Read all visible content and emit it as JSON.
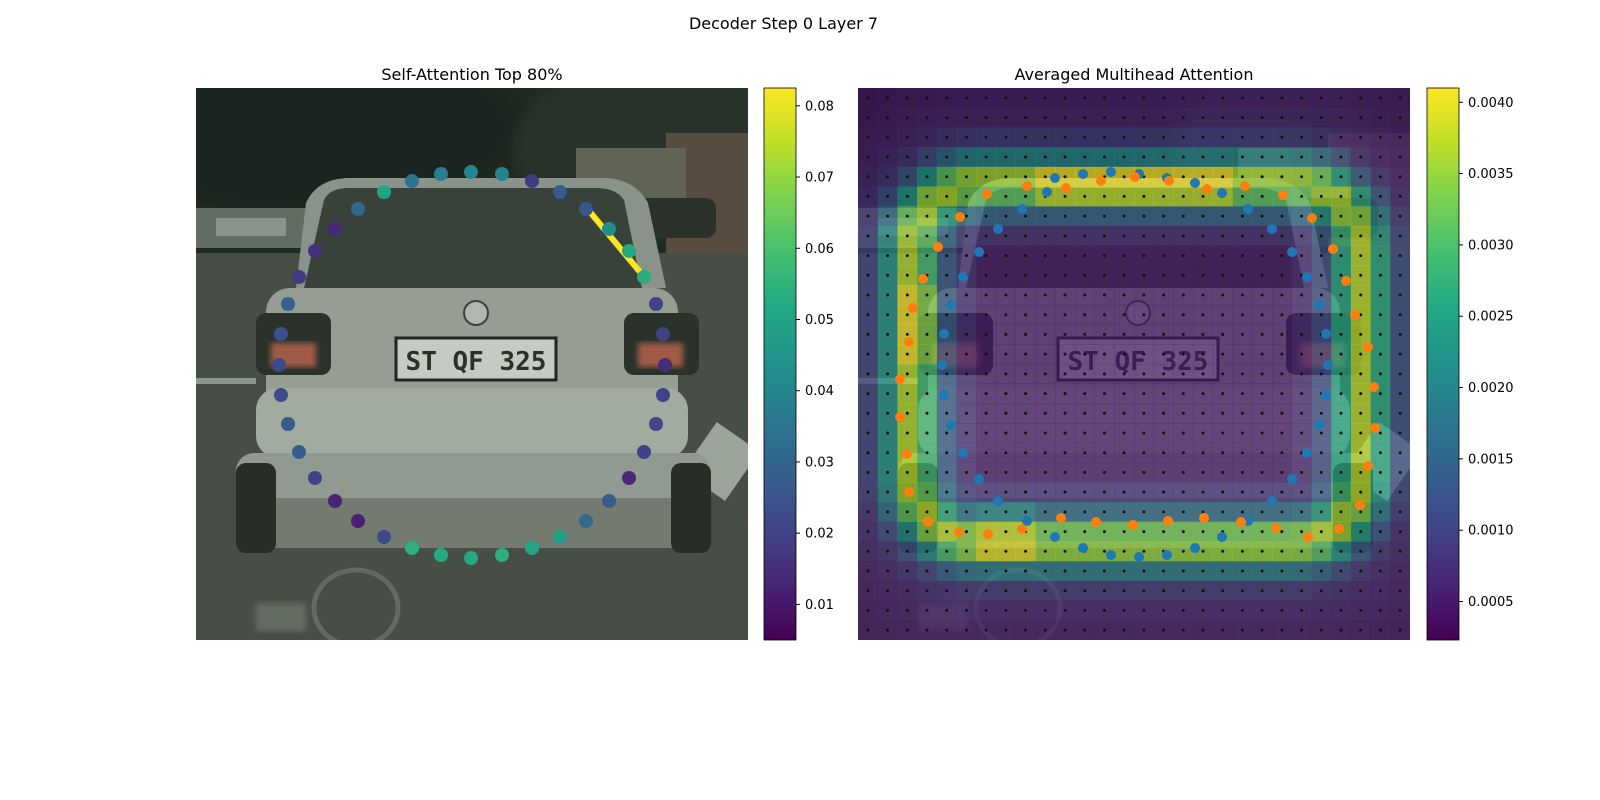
{
  "figure": {
    "suptitle": "Decoder Step 0 Layer 7"
  },
  "chart_data": [
    {
      "type": "scatter",
      "title": "Self-Attention Top 80%",
      "background": "blurred photograph of the rear of a silver car",
      "colormap": "viridis",
      "colorbar": {
        "min": 0.005,
        "max": 0.0825,
        "ticks": [
          0.01,
          0.02,
          0.03,
          0.04,
          0.05,
          0.06,
          0.07,
          0.08
        ],
        "tick_labels": [
          "0.01",
          "0.02",
          "0.03",
          "0.04",
          "0.05",
          "0.06",
          "0.07",
          "0.08"
        ]
      },
      "points": [
        {
          "v": 0.05,
          "x": 384,
          "y": 192
        },
        {
          "v": 0.034,
          "x": 412,
          "y": 181
        },
        {
          "v": 0.038,
          "x": 441,
          "y": 174
        },
        {
          "v": 0.04,
          "x": 471,
          "y": 172
        },
        {
          "v": 0.04,
          "x": 502,
          "y": 174
        },
        {
          "v": 0.018,
          "x": 532,
          "y": 181
        },
        {
          "v": 0.027,
          "x": 560,
          "y": 192
        },
        {
          "v": 0.026,
          "x": 586,
          "y": 209
        },
        {
          "v": 0.043,
          "x": 609,
          "y": 229
        },
        {
          "v": 0.052,
          "x": 629,
          "y": 251
        },
        {
          "v": 0.053,
          "x": 644,
          "y": 277
        },
        {
          "v": 0.02,
          "x": 656,
          "y": 304
        },
        {
          "v": 0.02,
          "x": 663,
          "y": 334
        },
        {
          "v": 0.015,
          "x": 665,
          "y": 365
        },
        {
          "v": 0.02,
          "x": 663,
          "y": 395
        },
        {
          "v": 0.021,
          "x": 656,
          "y": 424
        },
        {
          "v": 0.02,
          "x": 644,
          "y": 452
        },
        {
          "v": 0.014,
          "x": 629,
          "y": 478
        },
        {
          "v": 0.027,
          "x": 609,
          "y": 501
        },
        {
          "v": 0.032,
          "x": 586,
          "y": 521
        },
        {
          "v": 0.049,
          "x": 560,
          "y": 537
        },
        {
          "v": 0.051,
          "x": 532,
          "y": 548
        },
        {
          "v": 0.054,
          "x": 502,
          "y": 555
        },
        {
          "v": 0.052,
          "x": 471,
          "y": 558
        },
        {
          "v": 0.052,
          "x": 441,
          "y": 555
        },
        {
          "v": 0.054,
          "x": 412,
          "y": 548
        },
        {
          "v": 0.022,
          "x": 384,
          "y": 537
        },
        {
          "v": 0.012,
          "x": 358,
          "y": 521
        },
        {
          "v": 0.013,
          "x": 335,
          "y": 501
        },
        {
          "v": 0.02,
          "x": 315,
          "y": 478
        },
        {
          "v": 0.028,
          "x": 299,
          "y": 452
        },
        {
          "v": 0.027,
          "x": 288,
          "y": 424
        },
        {
          "v": 0.023,
          "x": 281,
          "y": 395
        },
        {
          "v": 0.022,
          "x": 279,
          "y": 365
        },
        {
          "v": 0.024,
          "x": 281,
          "y": 334
        },
        {
          "v": 0.029,
          "x": 288,
          "y": 304
        },
        {
          "v": 0.018,
          "x": 299,
          "y": 277
        },
        {
          "v": 0.016,
          "x": 315,
          "y": 251
        },
        {
          "v": 0.014,
          "x": 335,
          "y": 229
        },
        {
          "v": 0.031,
          "x": 358,
          "y": 209
        }
      ],
      "highlight_segment": {
        "v": 0.0825,
        "x1": 590,
        "y1": 212,
        "x2": 640,
        "y2": 272
      }
    },
    {
      "type": "heatmap",
      "title": "Averaged Multihead Attention",
      "background": "blurred photograph of the rear of a silver car",
      "colormap": "viridis",
      "colorbar": {
        "min": 0.00023,
        "max": 0.0041,
        "ticks": [
          0.0005,
          0.001,
          0.0015,
          0.002,
          0.0025,
          0.003,
          0.0035,
          0.004
        ],
        "tick_labels": [
          "0.0005",
          "0.0010",
          "0.0015",
          "0.0020",
          "0.0025",
          "0.0030",
          "0.0035",
          "0.0040"
        ]
      },
      "grid": {
        "cols": 28,
        "rows": 28
      },
      "series": [
        {
          "name": "",
          "color": "#1f77b4",
          "points": [
            [
              1055,
              178
            ],
            [
              1083,
              174
            ],
            [
              1111,
              172
            ],
            [
              1139,
              174
            ],
            [
              1167,
              178
            ],
            [
              1195,
              183
            ],
            [
              1222,
              193
            ],
            [
              1248,
              209
            ],
            [
              1272,
              229
            ],
            [
              1292,
              252
            ],
            [
              1307,
              277
            ],
            [
              1319,
              305
            ],
            [
              1326,
              334
            ],
            [
              1328,
              365
            ],
            [
              1326,
              395
            ],
            [
              1319,
              425
            ],
            [
              1307,
              453
            ],
            [
              1292,
              479
            ],
            [
              1272,
              501
            ],
            [
              1248,
              521
            ],
            [
              1222,
              537
            ],
            [
              1195,
              548
            ],
            [
              1167,
              555
            ],
            [
              1139,
              557
            ],
            [
              1111,
              555
            ],
            [
              1083,
              548
            ],
            [
              1055,
              537
            ],
            [
              1027,
              521
            ],
            [
              998,
              501
            ],
            [
              979,
              479
            ],
            [
              963,
              453
            ],
            [
              951,
              425
            ],
            [
              944,
              395
            ],
            [
              942,
              365
            ],
            [
              944,
              334
            ],
            [
              951,
              305
            ],
            [
              963,
              277
            ],
            [
              979,
              252
            ],
            [
              998,
              229
            ],
            [
              1022,
              209
            ],
            [
              1047,
              192
            ]
          ]
        },
        {
          "name": "",
          "color": "#ff7f0e",
          "points": [
            [
              987,
              194
            ],
            [
              1027,
              186
            ],
            [
              1066,
              188
            ],
            [
              1101,
              181
            ],
            [
              1135,
              177
            ],
            [
              1169,
              181
            ],
            [
              1207,
              189
            ],
            [
              1245,
              186
            ],
            [
              1283,
              195
            ],
            [
              1312,
              218
            ],
            [
              1333,
              249
            ],
            [
              1346,
              281
            ],
            [
              1355,
              315
            ],
            [
              1368,
              347
            ],
            [
              1374,
              387
            ],
            [
              1375,
              428
            ],
            [
              1368,
              466
            ],
            [
              1360,
              505
            ],
            [
              1339,
              529
            ],
            [
              1308,
              537
            ],
            [
              1276,
              528
            ],
            [
              1241,
              522
            ],
            [
              1204,
              518
            ],
            [
              1168,
              521
            ],
            [
              1133,
              525
            ],
            [
              1096,
              522
            ],
            [
              1061,
              518
            ],
            [
              1022,
              529
            ],
            [
              988,
              534
            ],
            [
              959,
              532
            ],
            [
              928,
              522
            ],
            [
              909,
              492
            ],
            [
              907,
              454
            ],
            [
              900,
              417
            ],
            [
              900,
              379
            ],
            [
              909,
              342
            ],
            [
              913,
              308
            ],
            [
              923,
              279
            ],
            [
              938,
              247
            ],
            [
              960,
              217
            ]
          ]
        }
      ]
    }
  ]
}
